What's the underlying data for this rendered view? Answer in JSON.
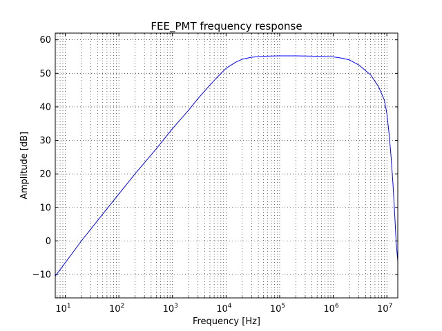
{
  "chart_data": {
    "type": "line",
    "title": "FEE_PMT frequency response",
    "xlabel": "Frequency [Hz]",
    "ylabel": "Amplitude [dB]",
    "xscale": "log",
    "xlim": [
      6.5,
      16000000
    ],
    "ylim": [
      -17,
      62
    ],
    "grid": true,
    "grid_style": "dotted",
    "x_ticks": [
      {
        "value": 10,
        "base": "10",
        "exp": "1"
      },
      {
        "value": 100,
        "base": "10",
        "exp": "2"
      },
      {
        "value": 1000,
        "base": "10",
        "exp": "3"
      },
      {
        "value": 10000,
        "base": "10",
        "exp": "4"
      },
      {
        "value": 100000,
        "base": "10",
        "exp": "5"
      },
      {
        "value": 1000000,
        "base": "10",
        "exp": "6"
      },
      {
        "value": 10000000,
        "base": "10",
        "exp": "7"
      }
    ],
    "y_ticks": [
      {
        "value": -10,
        "label": "−10"
      },
      {
        "value": 0,
        "label": "0"
      },
      {
        "value": 10,
        "label": "10"
      },
      {
        "value": 20,
        "label": "20"
      },
      {
        "value": 30,
        "label": "30"
      },
      {
        "value": 40,
        "label": "40"
      },
      {
        "value": 50,
        "label": "50"
      },
      {
        "value": 60,
        "label": "60"
      }
    ],
    "series": [
      {
        "color": "#0000ff",
        "x": [
          6.5,
          10,
          20,
          50,
          100,
          200,
          500,
          1000,
          2000,
          3000,
          5000,
          7000,
          10000,
          15000,
          20000,
          30000,
          50000,
          100000,
          200000,
          500000,
          1000000,
          1500000,
          2000000,
          3000000,
          5000000,
          7000000,
          9000000,
          10000000,
          11000000,
          12000000,
          13000000,
          14000000,
          15000000,
          15500000,
          16000000
        ],
        "y": [
          -10.5,
          -6.5,
          0,
          8,
          14,
          20,
          27.5,
          33.5,
          39,
          42.5,
          46.5,
          49,
          51.5,
          53.3,
          54.2,
          54.8,
          55.1,
          55.2,
          55.2,
          55.1,
          54.9,
          54.5,
          54,
          52.5,
          49.5,
          46,
          42,
          38,
          32,
          25,
          17,
          8,
          -1,
          -3.5,
          -6
        ]
      }
    ]
  }
}
